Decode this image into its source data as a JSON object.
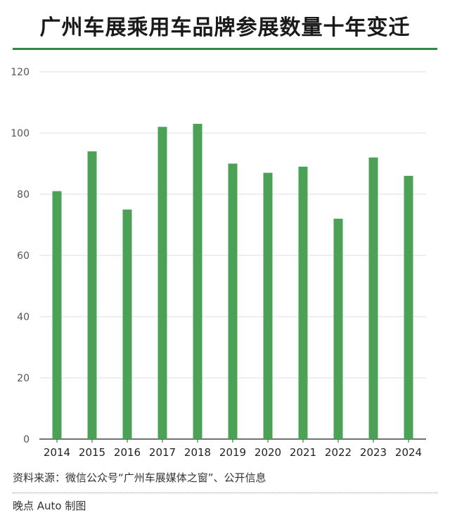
{
  "title": "广州车展乘用车品牌参展数量十年变迁",
  "source": "资料来源：微信公众号“广州车展媒体之窗”、公开信息",
  "credit": "晚点 Auto 制图",
  "colors": {
    "bar": "#4ba155",
    "accent": "#2f8a43",
    "grid": "#dddddd",
    "axis": "#444444"
  },
  "chart_data": {
    "type": "bar",
    "categories": [
      "2014",
      "2015",
      "2016",
      "2017",
      "2018",
      "2019",
      "2020",
      "2021",
      "2022",
      "2023",
      "2024"
    ],
    "values": [
      81,
      94,
      75,
      102,
      103,
      90,
      87,
      89,
      72,
      92,
      86
    ],
    "ylim": [
      0,
      120
    ],
    "yticks": [
      0,
      20,
      40,
      60,
      80,
      100,
      120
    ],
    "grid": true,
    "xlabel": "",
    "ylabel": ""
  }
}
